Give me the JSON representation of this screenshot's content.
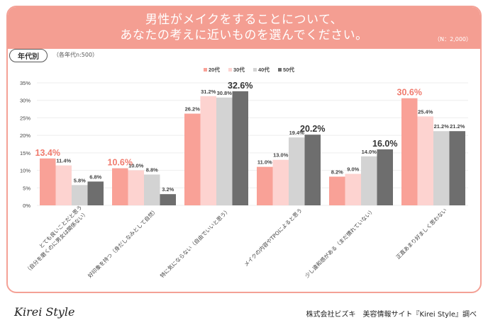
{
  "header": {
    "title_line1": "男性がメイクをすることについて、",
    "title_line2": "あなたの考えに近いものを選んでください。",
    "n_badge": "（N：2,000）"
  },
  "filter": {
    "tag_label": "年代別",
    "sample_note": "（各年代n:500）"
  },
  "footer": {
    "logo": "Kirei Style",
    "credit": "株式会社ビズキ　美容情報サイト『Kirei Style』調べ"
  },
  "colors": {
    "header_bg": "#f49e92",
    "border": "#f4a196",
    "s20": "#f9a197",
    "s30": "#fdd3d0",
    "s40": "#d3d3d3",
    "s50": "#6e6e6e",
    "highlight_red": "#f07a6d",
    "highlight_dark": "#333333"
  },
  "chart_data": {
    "type": "bar",
    "title": "男性がメイクをすることについて、あなたの考えに近いものを選んでください。",
    "xlabel": "",
    "ylabel": "",
    "ylim": [
      0,
      35
    ],
    "yticks": [
      0,
      5,
      10,
      15,
      20,
      25,
      30,
      35
    ],
    "ytick_labels": [
      "0%",
      "5%",
      "10%",
      "15%",
      "20%",
      "25%",
      "30%",
      "35%"
    ],
    "grid": true,
    "legend_position": "top-center",
    "categories": [
      "とても良いことだと思う（自分を磨くのに男女は関係ない）",
      "好印象を持つ（身だしなみとして自然）",
      "特に気にならない（自由でいいと思う）",
      "メイクの内容やTPOによると思う",
      "少し違和感がある（まだ慣れていない）",
      "正直あまり好ましく思わない"
    ],
    "series": [
      {
        "name": "20代",
        "values": [
          13.4,
          10.6,
          26.2,
          11.0,
          8.2,
          30.6
        ]
      },
      {
        "name": "30代",
        "values": [
          11.4,
          10.0,
          31.2,
          13.0,
          9.0,
          25.4
        ]
      },
      {
        "name": "40代",
        "values": [
          5.8,
          8.8,
          30.8,
          19.4,
          14.0,
          21.2
        ]
      },
      {
        "name": "50代",
        "values": [
          6.8,
          3.2,
          32.6,
          20.2,
          16.0,
          21.2
        ]
      }
    ],
    "value_labels": [
      [
        "13.4%",
        "11.4%",
        "5.8%",
        "6.8%"
      ],
      [
        "10.6%",
        "10.0%",
        "8.8%",
        "3.2%"
      ],
      [
        "26.2%",
        "31.2%",
        "30.8%",
        "32.6%"
      ],
      [
        "11.0%",
        "13.0%",
        "19.4%",
        "20.2%"
      ],
      [
        "8.2%",
        "9.0%",
        "14.0%",
        "16.0%"
      ],
      [
        "30.6%",
        "25.4%",
        "21.2%",
        "21.2%"
      ]
    ],
    "highlighted": [
      {
        "category_index": 0,
        "series_index": 0,
        "style": "red"
      },
      {
        "category_index": 1,
        "series_index": 0,
        "style": "red"
      },
      {
        "category_index": 2,
        "series_index": 3,
        "style": "dark"
      },
      {
        "category_index": 3,
        "series_index": 3,
        "style": "dark"
      },
      {
        "category_index": 4,
        "series_index": 3,
        "style": "dark"
      },
      {
        "category_index": 5,
        "series_index": 0,
        "style": "red"
      }
    ]
  }
}
